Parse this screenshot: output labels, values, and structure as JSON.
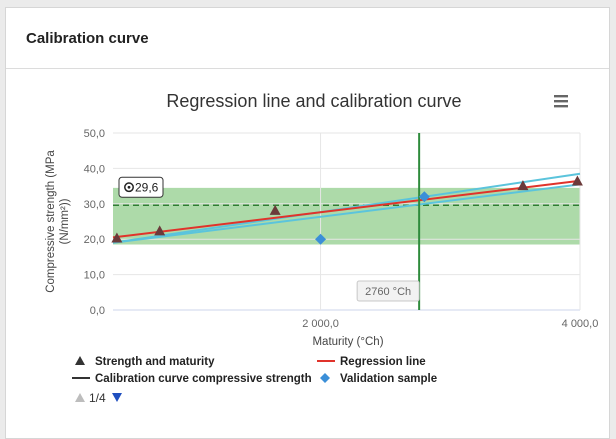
{
  "card": {
    "title": "Calibration curve"
  },
  "menu_icon": "hamburger-menu-icon",
  "colors": {
    "band": "#9fd49a",
    "regression": "#e0332b",
    "calibration": "#5bc4dc",
    "strength_marker": "#6b3a3a",
    "validation_marker": "#3b8fd8",
    "target_line": "#2e7d32",
    "maturity_line": "#2e8b3c",
    "nav_down": "#1f4fbf"
  },
  "chart_data": {
    "type": "scatter",
    "title": "Regression line and calibration curve",
    "xlabel": "Maturity (°Ch)",
    "ylabel": "Compressive strength (MPa (N/mm²))",
    "xlim": [
      400,
      4000
    ],
    "ylim": [
      0,
      50
    ],
    "x_ticks": [
      {
        "value": 2000,
        "label": "2 000,0"
      },
      {
        "value": 4000,
        "label": "4 000,0"
      }
    ],
    "y_ticks": [
      {
        "value": 0,
        "label": "0,0"
      },
      {
        "value": 10,
        "label": "10,0"
      },
      {
        "value": 20,
        "label": "20,0"
      },
      {
        "value": 30,
        "label": "30,0"
      },
      {
        "value": 40,
        "label": "40,0"
      },
      {
        "value": 50,
        "label": "50,0"
      }
    ],
    "grid": true,
    "band": {
      "y_from": 18.5,
      "y_to": 34.5
    },
    "target_line": {
      "y": 29.6,
      "label": "29,6"
    },
    "maturity_line": {
      "x": 2760,
      "label": "2760 °Ch"
    },
    "series": [
      {
        "name": "Strength and maturity",
        "marker": "triangle",
        "points": [
          [
            430,
            20.2
          ],
          [
            760,
            22.2
          ],
          [
            1650,
            28.0
          ],
          [
            3560,
            35.0
          ],
          [
            3980,
            36.3
          ]
        ]
      },
      {
        "name": "Regression line",
        "line": [
          [
            400,
            20.5
          ],
          [
            4000,
            36.5
          ]
        ]
      },
      {
        "name": "Calibration curve compressive strength",
        "lines": [
          [
            [
              400,
              19.0
            ],
            [
              4000,
              38.5
            ]
          ],
          [
            [
              400,
              19.0
            ],
            [
              4000,
              35.5
            ]
          ]
        ]
      },
      {
        "name": "Validation sample",
        "marker": "diamond",
        "points": [
          [
            2000,
            20.0
          ],
          [
            2800,
            32.0
          ]
        ]
      }
    ],
    "legend": {
      "placement": "bottom",
      "items": [
        {
          "label": "Strength and maturity",
          "symbol": "triangle"
        },
        {
          "label": "Regression line",
          "symbol": "red-line"
        },
        {
          "label": "Calibration curve compressive strength",
          "symbol": "dark-line"
        },
        {
          "label": "Validation sample",
          "symbol": "diamond"
        }
      ],
      "nav": {
        "page_text": "1/4"
      }
    }
  }
}
